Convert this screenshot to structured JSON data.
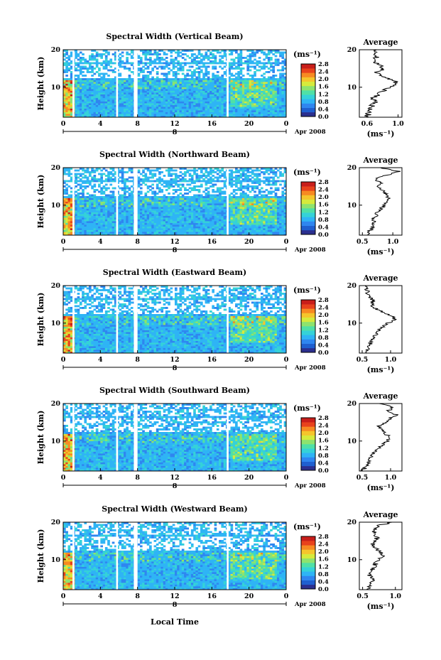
{
  "colors": {
    "colormap": [
      "#2b2f8f",
      "#1f5fd0",
      "#2f86f0",
      "#2fb4f5",
      "#35d2d8",
      "#4fe0a6",
      "#8ee36e",
      "#d6ea3c",
      "#f5c52c",
      "#f78a22",
      "#e8421c",
      "#c81e1a"
    ],
    "line": "#000000",
    "gap_bar": "#ffffff"
  },
  "footer": {
    "xlabel": "Local Time"
  },
  "chart_data": [
    {
      "type": "heatmap",
      "title": "Spectral Width (Vertical Beam)",
      "ylabel": "Height (km)",
      "x_ticks": [
        "0",
        "4",
        "8",
        "12",
        "16",
        "20",
        "0"
      ],
      "y_ticks": [
        "10",
        "20"
      ],
      "xlim": [
        0,
        24
      ],
      "ylim": [
        2,
        20
      ],
      "date_day": "8",
      "date_label": "Apr 2008",
      "colorbar": {
        "label": "(ms⁻¹)",
        "ticks": [
          "0.0",
          "0.4",
          "0.8",
          "1.2",
          "1.6",
          "2.0",
          "2.4",
          "2.8"
        ],
        "range": [
          0.0,
          2.8
        ]
      },
      "average": {
        "title": "Average",
        "xlabel": "(ms⁻¹)",
        "x_ticks": [
          "0.6",
          "1.0"
        ],
        "xlim": [
          0.5,
          1.05
        ],
        "y_ticks": [
          "10",
          "20"
        ],
        "profile": [
          [
            2,
            0.6
          ],
          [
            3,
            0.62
          ],
          [
            4,
            0.65
          ],
          [
            5,
            0.66
          ],
          [
            6,
            0.7
          ],
          [
            7,
            0.68
          ],
          [
            8,
            0.74
          ],
          [
            9,
            0.8
          ],
          [
            10,
            0.9
          ],
          [
            11,
            1.0
          ],
          [
            12,
            0.92
          ],
          [
            13,
            0.78
          ],
          [
            14,
            0.7
          ],
          [
            15,
            0.82
          ],
          [
            16,
            0.74
          ],
          [
            17,
            0.68
          ],
          [
            18,
            0.72
          ],
          [
            19,
            0.7
          ],
          [
            20,
            0.68
          ]
        ]
      }
    },
    {
      "type": "heatmap",
      "title": "Spectral Width (Northward Beam)",
      "ylabel": "Height (km)",
      "x_ticks": [
        "0",
        "4",
        "8",
        "12",
        "16",
        "20",
        "0"
      ],
      "y_ticks": [
        "10",
        "20"
      ],
      "xlim": [
        0,
        24
      ],
      "ylim": [
        2,
        20
      ],
      "date_day": "8",
      "date_label": "Apr 2008",
      "colorbar": {
        "label": "(ms⁻¹)",
        "ticks": [
          "0.0",
          "0.4",
          "0.8",
          "1.2",
          "1.6",
          "2.0",
          "2.4",
          "2.8"
        ],
        "range": [
          0.0,
          2.8
        ]
      },
      "average": {
        "title": "Average",
        "xlabel": "(ms⁻¹)",
        "x_ticks": [
          "0.5",
          "1.0"
        ],
        "xlim": [
          0.45,
          1.15
        ],
        "y_ticks": [
          "10",
          "20"
        ],
        "profile": [
          [
            2,
            0.58
          ],
          [
            3,
            0.62
          ],
          [
            4,
            0.66
          ],
          [
            5,
            0.7
          ],
          [
            6,
            0.68
          ],
          [
            7,
            0.72
          ],
          [
            8,
            0.75
          ],
          [
            9,
            0.8
          ],
          [
            10,
            0.85
          ],
          [
            11,
            0.88
          ],
          [
            12,
            0.92
          ],
          [
            13,
            0.88
          ],
          [
            14,
            0.84
          ],
          [
            15,
            0.78
          ],
          [
            16,
            0.8
          ],
          [
            17,
            0.72
          ],
          [
            18,
            0.9
          ],
          [
            19,
            1.1
          ],
          [
            20,
            0.8
          ]
        ]
      }
    },
    {
      "type": "heatmap",
      "title": "Spectral Width (Eastward Beam)",
      "ylabel": "Height (km)",
      "x_ticks": [
        "0",
        "4",
        "8",
        "12",
        "16",
        "20",
        "0"
      ],
      "y_ticks": [
        "10",
        "20"
      ],
      "xlim": [
        0,
        24
      ],
      "ylim": [
        2,
        20
      ],
      "date_day": "8",
      "date_label": "Apr 2008",
      "colorbar": {
        "label": "(ms⁻¹)",
        "ticks": [
          "0.0",
          "0.4",
          "0.8",
          "1.2",
          "1.6",
          "2.0",
          "2.4",
          "2.8"
        ],
        "range": [
          0.0,
          2.8
        ]
      },
      "average": {
        "title": "Average",
        "xlabel": "(ms⁻¹)",
        "x_ticks": [
          "0.5",
          "1.0"
        ],
        "xlim": [
          0.45,
          1.2
        ],
        "y_ticks": [
          "10",
          "20"
        ],
        "profile": [
          [
            2,
            0.56
          ],
          [
            3,
            0.6
          ],
          [
            4,
            0.62
          ],
          [
            5,
            0.66
          ],
          [
            6,
            0.7
          ],
          [
            7,
            0.74
          ],
          [
            8,
            0.8
          ],
          [
            9,
            0.86
          ],
          [
            10,
            0.95
          ],
          [
            11,
            1.1
          ],
          [
            12,
            1.0
          ],
          [
            13,
            0.85
          ],
          [
            14,
            0.72
          ],
          [
            15,
            0.66
          ],
          [
            16,
            0.7
          ],
          [
            17,
            0.62
          ],
          [
            18,
            0.6
          ],
          [
            19,
            0.58
          ],
          [
            20,
            0.56
          ]
        ]
      }
    },
    {
      "type": "heatmap",
      "title": "Spectral Width (Southward Beam)",
      "ylabel": "Height (km)",
      "x_ticks": [
        "0",
        "4",
        "8",
        "12",
        "16",
        "20",
        "0"
      ],
      "y_ticks": [
        "10",
        "20"
      ],
      "xlim": [
        0,
        24
      ],
      "ylim": [
        2,
        20
      ],
      "date_day": "8",
      "date_label": "Apr 2008",
      "colorbar": {
        "label": "(ms⁻¹)",
        "ticks": [
          "0.0",
          "0.4",
          "0.8",
          "1.2",
          "1.6",
          "2.0",
          "2.4",
          "2.8"
        ],
        "range": [
          0.0,
          2.8
        ]
      },
      "average": {
        "title": "Average",
        "xlabel": "(ms⁻¹)",
        "x_ticks": [
          "0.5",
          "1.0"
        ],
        "xlim": [
          0.45,
          1.2
        ],
        "y_ticks": [
          "10",
          "20"
        ],
        "profile": [
          [
            2,
            0.5
          ],
          [
            3,
            0.56
          ],
          [
            4,
            0.6
          ],
          [
            5,
            0.64
          ],
          [
            6,
            0.66
          ],
          [
            7,
            0.72
          ],
          [
            8,
            0.8
          ],
          [
            9,
            0.85
          ],
          [
            10,
            0.95
          ],
          [
            11,
            1.0
          ],
          [
            12,
            0.9
          ],
          [
            13,
            0.85
          ],
          [
            14,
            0.8
          ],
          [
            15,
            0.92
          ],
          [
            16,
            0.98
          ],
          [
            17,
            1.1
          ],
          [
            18,
            0.95
          ],
          [
            19,
            1.05
          ],
          [
            20,
            0.8
          ]
        ]
      }
    },
    {
      "type": "heatmap",
      "title": "Spectral Width (Westward Beam)",
      "ylabel": "Height (km)",
      "x_ticks": [
        "0",
        "4",
        "8",
        "12",
        "16",
        "20",
        "0"
      ],
      "y_ticks": [
        "10",
        "20"
      ],
      "xlim": [
        0,
        24
      ],
      "ylim": [
        2,
        20
      ],
      "date_day": "8",
      "date_label": "Apr 2008",
      "colorbar": {
        "label": "(ms⁻¹)",
        "ticks": [
          "0.0",
          "0.4",
          "0.8",
          "1.2",
          "1.6",
          "2.0",
          "2.4",
          "2.8"
        ],
        "range": [
          0.0,
          2.8
        ]
      },
      "average": {
        "title": "Average",
        "xlabel": "(ms⁻¹)",
        "x_ticks": [
          "0.5",
          "1.0"
        ],
        "xlim": [
          0.45,
          1.1
        ],
        "y_ticks": [
          "10",
          "20"
        ],
        "profile": [
          [
            2,
            0.58
          ],
          [
            3,
            0.62
          ],
          [
            4,
            0.64
          ],
          [
            5,
            0.66
          ],
          [
            6,
            0.6
          ],
          [
            7,
            0.64
          ],
          [
            8,
            0.68
          ],
          [
            9,
            0.7
          ],
          [
            10,
            0.75
          ],
          [
            11,
            0.8
          ],
          [
            12,
            0.78
          ],
          [
            13,
            0.7
          ],
          [
            14,
            0.65
          ],
          [
            15,
            0.7
          ],
          [
            16,
            0.72
          ],
          [
            17,
            0.66
          ],
          [
            18,
            0.7
          ],
          [
            19,
            0.72
          ],
          [
            20,
            0.95
          ]
        ]
      }
    }
  ]
}
